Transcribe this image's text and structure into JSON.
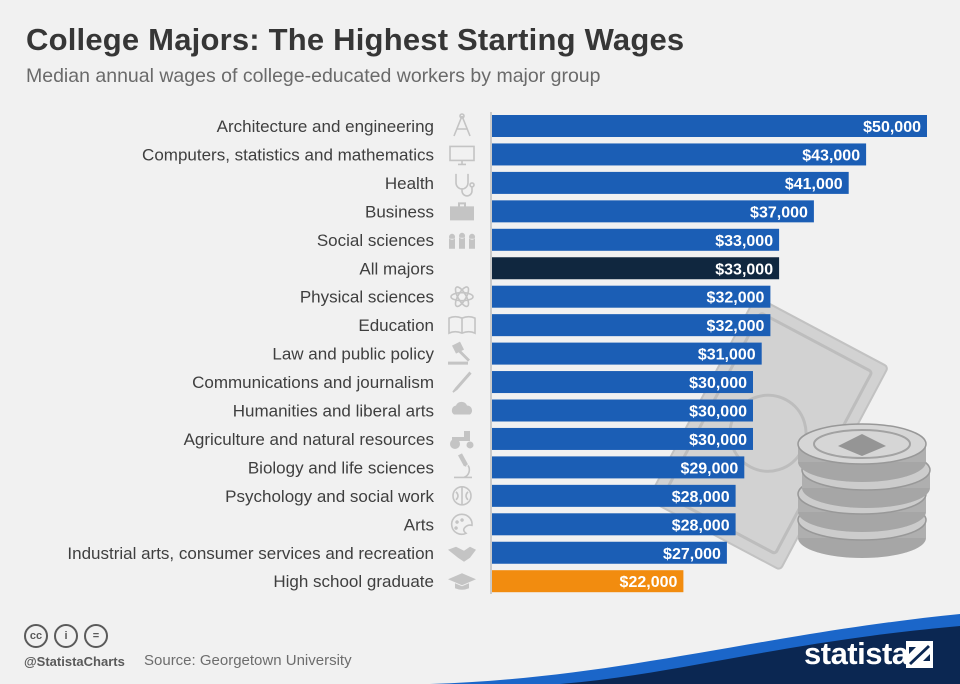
{
  "header": {
    "title": "College Majors: The Highest Starting Wages",
    "subtitle": "Median annual wages of college-educated workers by major group"
  },
  "chart_data": {
    "type": "bar",
    "orientation": "horizontal",
    "title": "College Majors: The Highest Starting Wages",
    "subtitle": "Median annual wages of college-educated workers by major group",
    "xlabel": "",
    "ylabel": "",
    "xlim": [
      0,
      50000
    ],
    "grid": false,
    "categories": [
      "Architecture and engineering",
      "Computers, statistics and mathematics",
      "Health",
      "Business",
      "Social sciences",
      "All majors",
      "Physical sciences",
      "Education",
      "Law and public policy",
      "Communications and journalism",
      "Humanities and liberal arts",
      "Agriculture and natural resources",
      "Biology and life sciences",
      "Psychology and social work",
      "Arts",
      "Industrial arts, consumer services and recreation",
      "High school graduate"
    ],
    "values": [
      50000,
      43000,
      41000,
      37000,
      33000,
      33000,
      32000,
      32000,
      31000,
      30000,
      30000,
      30000,
      29000,
      28000,
      28000,
      27000,
      22000
    ],
    "value_labels": [
      "$50,000",
      "$43,000",
      "$41,000",
      "$37,000",
      "$33,000",
      "$33,000",
      "$32,000",
      "$32,000",
      "$31,000",
      "$30,000",
      "$30,000",
      "$30,000",
      "$29,000",
      "$28,000",
      "$28,000",
      "$27,000",
      "$22,000"
    ],
    "icons": [
      "compass-icon",
      "monitor-icon",
      "stethoscope-icon",
      "briefcase-icon",
      "people-icon",
      "",
      "atom-icon",
      "book-icon",
      "gavel-icon",
      "pen-icon",
      "brain-cloud-icon",
      "tractor-icon",
      "microscope-icon",
      "brain-icon",
      "palette-icon",
      "handshake-icon",
      "graduation-cap-icon"
    ],
    "colors": {
      "default": "#1b5eb5",
      "highlight_all_majors": "#10273f",
      "highlight_high_school": "#f28c0f"
    }
  },
  "footer": {
    "cc_icons": [
      "cc",
      "by",
      "nd"
    ],
    "cc_symbols": [
      "cc",
      "i",
      "="
    ],
    "handle": "@StatistaCharts",
    "source": "Source: Georgetown University",
    "brand": "statista"
  },
  "colors": {
    "background": "#f1f1f1",
    "footer_blue": "#1b66c9",
    "footer_navy": "#0b2752"
  }
}
